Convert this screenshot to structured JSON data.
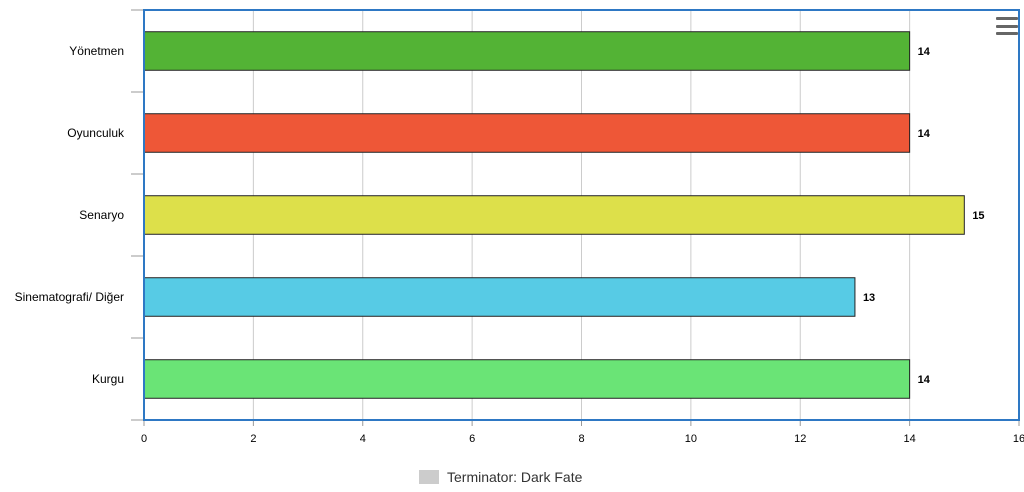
{
  "chart_data": {
    "type": "bar",
    "orientation": "horizontal",
    "categories": [
      "Yönetmen",
      "Oyunculuk",
      "Senaryo",
      "Sinematografi/ Diğer",
      "Kurgu"
    ],
    "values": [
      14,
      14,
      15,
      13,
      14
    ],
    "colors": [
      "#53b335",
      "#ee5737",
      "#dde04a",
      "#57cbe5",
      "#6ae476"
    ],
    "series": [
      {
        "name": "Terminator: Dark Fate",
        "values": [
          14,
          14,
          15,
          13,
          14
        ]
      }
    ],
    "xlim": [
      0,
      16
    ],
    "xticks": [
      0,
      2,
      4,
      6,
      8,
      10,
      12,
      14,
      16
    ],
    "title": "",
    "xlabel": "",
    "ylabel": "",
    "grid": true,
    "legend": "bottom-center",
    "legend_color": "#cccccc",
    "data_labels": true
  },
  "menu": {
    "icon": "hamburger-menu-icon"
  }
}
